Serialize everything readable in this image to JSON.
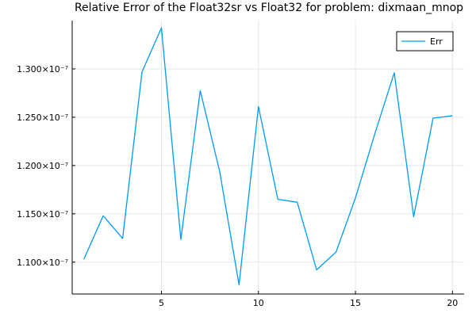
{
  "chart_data": {
    "type": "line",
    "title": "Relative Error of the Float32sr vs Float32 for problem: dixmaan_mnop",
    "xlabel": "",
    "ylabel": "",
    "xlim": [
      0.4,
      20.6
    ],
    "ylim": [
      1.067e-07,
      1.35e-07
    ],
    "x_ticks": [
      5,
      10,
      15,
      20
    ],
    "y_ticks": [
      {
        "value": 1.1e-07,
        "label": "1.100×10⁻⁷"
      },
      {
        "value": 1.15e-07,
        "label": "1.150×10⁻⁷"
      },
      {
        "value": 1.2e-07,
        "label": "1.200×10⁻⁷"
      },
      {
        "value": 1.25e-07,
        "label": "1.250×10⁻⁷"
      },
      {
        "value": 1.3e-07,
        "label": "1.300×10⁻⁷"
      }
    ],
    "grid": true,
    "legend_position": "top-right",
    "series": [
      {
        "name": "Err",
        "color": "#009af9",
        "x": [
          1,
          2,
          3,
          4,
          5,
          6,
          7,
          8,
          9,
          10,
          11,
          12,
          13,
          14,
          15,
          16,
          17,
          18,
          19,
          20
        ],
        "values": [
          1.103e-07,
          1.148e-07,
          1.1245e-07,
          1.297e-07,
          1.3425e-07,
          1.1235e-07,
          1.2775e-07,
          1.194e-07,
          1.0765e-07,
          1.261e-07,
          1.165e-07,
          1.162e-07,
          1.092e-07,
          1.1105e-07,
          1.1665e-07,
          1.233e-07,
          1.296e-07,
          1.147e-07,
          1.249e-07,
          1.2515e-07
        ]
      }
    ]
  }
}
